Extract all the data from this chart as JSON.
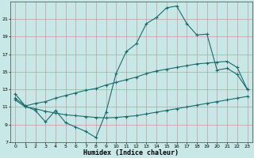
{
  "xlabel": "Humidex (Indice chaleur)",
  "bg_color": "#c8e8e8",
  "grid_color": "#cc9999",
  "line_color": "#1a6b6b",
  "xlim": [
    -0.5,
    23.5
  ],
  "ylim": [
    7,
    23
  ],
  "xticks": [
    0,
    1,
    2,
    3,
    4,
    5,
    6,
    7,
    8,
    9,
    10,
    11,
    12,
    13,
    14,
    15,
    16,
    17,
    18,
    19,
    20,
    21,
    22,
    23
  ],
  "yticks": [
    7,
    9,
    11,
    13,
    15,
    17,
    19,
    21
  ],
  "line1_x": [
    0,
    1,
    2,
    3,
    4,
    5,
    6,
    7,
    8,
    9,
    10,
    11,
    12,
    13,
    14,
    15,
    16,
    17,
    18,
    19,
    20,
    21,
    22,
    23
  ],
  "line1_y": [
    12.5,
    11.1,
    10.6,
    9.3,
    10.6,
    9.2,
    8.7,
    8.2,
    7.5,
    10.4,
    14.8,
    17.3,
    18.2,
    20.5,
    21.2,
    22.3,
    22.5,
    20.5,
    19.2,
    19.3,
    15.2,
    15.4,
    14.7,
    13.0
  ],
  "line2_x": [
    0,
    1,
    2,
    3,
    4,
    5,
    6,
    7,
    8,
    9,
    10,
    11,
    12,
    13,
    14,
    15,
    16,
    17,
    18,
    19,
    20,
    21,
    22,
    23
  ],
  "line2_y": [
    12.0,
    11.1,
    11.4,
    11.6,
    12.0,
    12.3,
    12.6,
    12.9,
    13.1,
    13.5,
    13.8,
    14.1,
    14.4,
    14.8,
    15.1,
    15.3,
    15.5,
    15.7,
    15.9,
    16.0,
    16.1,
    16.2,
    15.5,
    13.0
  ],
  "line3_x": [
    0,
    1,
    2,
    3,
    4,
    5,
    6,
    7,
    8,
    9,
    10,
    11,
    12,
    13,
    14,
    15,
    16,
    17,
    18,
    19,
    20,
    21,
    22,
    23
  ],
  "line3_y": [
    11.8,
    11.0,
    10.8,
    10.5,
    10.3,
    10.1,
    10.0,
    9.9,
    9.8,
    9.75,
    9.8,
    9.9,
    10.0,
    10.2,
    10.4,
    10.6,
    10.8,
    11.0,
    11.2,
    11.4,
    11.6,
    11.8,
    12.0,
    12.2
  ],
  "xlabel_fontsize": 6,
  "tick_fontsize": 4.5,
  "lw": 0.8,
  "ms": 2.5
}
